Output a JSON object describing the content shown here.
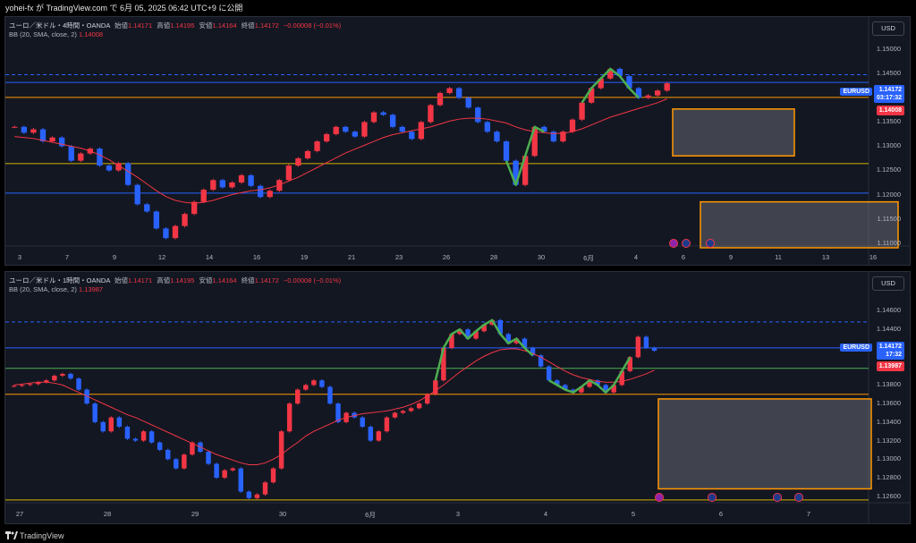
{
  "header": {
    "text": "yohei-fx が TradingView.com で 6月 05, 2025 06:42 UTC+9 に公開"
  },
  "footer": {
    "brand": "TradingView"
  },
  "colors": {
    "up": "#f23645",
    "down": "#2962ff",
    "bb": "#f23645",
    "green": "#4caf50",
    "orange": "#ff9800",
    "yellow": "#d4b300",
    "blue_line": "#2962ff"
  },
  "panels": [
    {
      "legend_title": "ユーロ／米ドル・4時間・OANDA",
      "open_label": "始値",
      "open": "1.14171",
      "high_label": "高値",
      "high": "1.14195",
      "low_label": "安値",
      "low": "1.14164",
      "close_label": "終値",
      "close": "1.14172",
      "change": "−0.00008 (−0.01%)",
      "bb_label": "BB (20, SMA, close, 2)",
      "bb_value": "1.14008",
      "currency": "USD",
      "symbol": "EURUSD",
      "last_price": "1.14172",
      "countdown": "03:17:32",
      "bb_tag": "1.14008",
      "price_ticks": [
        "1.15000",
        "1.14500",
        "1.14000",
        "1.13500",
        "1.13000",
        "1.12500",
        "1.12000",
        "1.11500",
        "1.11000"
      ],
      "date_ticks": [
        "3",
        "7",
        "9",
        "12",
        "14",
        "16",
        "19",
        "21",
        "23",
        "26",
        "28",
        "30",
        "6月",
        "4",
        "6",
        "9",
        "11",
        "13",
        "16"
      ]
    },
    {
      "legend_title": "ユーロ／米ドル・1時間・OANDA",
      "open_label": "始値",
      "open": "1.14171",
      "high_label": "高値",
      "high": "1.14195",
      "low_label": "安値",
      "low": "1.14164",
      "close_label": "終値",
      "close": "1.14172",
      "change": "−0.00008 (−0.01%)",
      "bb_label": "BB (20, SMA, close, 2)",
      "bb_value": "1.13987",
      "currency": "USD",
      "symbol": "EURUSD",
      "last_price": "1.14172",
      "countdown": "17:32",
      "bb_tag": "1.13987",
      "price_ticks": [
        "1.14600",
        "1.14400",
        "1.14200",
        "1.14000",
        "1.13800",
        "1.13600",
        "1.13400",
        "1.13200",
        "1.13000",
        "1.12800",
        "1.12600"
      ],
      "date_ticks": [
        "27",
        "28",
        "29",
        "30",
        "6月",
        "3",
        "4",
        "5",
        "6",
        "7"
      ]
    }
  ],
  "chart_data": [
    {
      "type": "candlestick",
      "title": "ユーロ／米ドル・4時間・OANDA",
      "ylim": [
        1.109,
        1.1545
      ],
      "close_series": [
        1.134,
        1.1328,
        1.1335,
        1.131,
        1.1318,
        1.13,
        1.127,
        1.1285,
        1.1295,
        1.126,
        1.125,
        1.1265,
        1.122,
        1.118,
        1.1165,
        1.113,
        1.111,
        1.1135,
        1.116,
        1.1185,
        1.121,
        1.123,
        1.1215,
        1.1225,
        1.124,
        1.1218,
        1.1195,
        1.1208,
        1.123,
        1.126,
        1.1275,
        1.129,
        1.131,
        1.1325,
        1.134,
        1.133,
        1.132,
        1.135,
        1.137,
        1.1365,
        1.134,
        1.133,
        1.1315,
        1.135,
        1.1385,
        1.141,
        1.142,
        1.14,
        1.138,
        1.135,
        1.133,
        1.131,
        1.127,
        1.122,
        1.128,
        1.134,
        1.133,
        1.131,
        1.133,
        1.1355,
        1.139,
        1.142,
        1.144,
        1.146,
        1.1445,
        1.142,
        1.14,
        1.1405,
        1.1415,
        1.143
      ],
      "bollinger_mid_series": [
        1.132,
        1.1318,
        1.1316,
        1.1312,
        1.1308,
        1.1304,
        1.13,
        1.1296,
        1.129,
        1.1282,
        1.1272,
        1.126,
        1.1248,
        1.1236,
        1.1222,
        1.1208,
        1.1196,
        1.1188,
        1.1184,
        1.1182,
        1.1184,
        1.1188,
        1.1194,
        1.12,
        1.1204,
        1.1208,
        1.121,
        1.1214,
        1.122,
        1.1228,
        1.1236,
        1.1246,
        1.1256,
        1.1266,
        1.1276,
        1.1286,
        1.1294,
        1.1302,
        1.131,
        1.1318,
        1.1324,
        1.1328,
        1.1332,
        1.1336,
        1.134,
        1.1346,
        1.1352,
        1.1356,
        1.1358,
        1.1358,
        1.1356,
        1.1352,
        1.1348,
        1.134,
        1.1334,
        1.133,
        1.1328,
        1.1326,
        1.1327,
        1.133,
        1.1336,
        1.1344,
        1.1352,
        1.136,
        1.1366,
        1.1372,
        1.1378,
        1.1384,
        1.139,
        1.1398
      ],
      "horizontal_levels": [
        {
          "y": 1.1448,
          "style": "dashed-blue"
        },
        {
          "y": 1.1432,
          "style": "blue"
        },
        {
          "y": 1.1401,
          "style": "orange"
        },
        {
          "y": 1.1264,
          "style": "yellow"
        },
        {
          "y": 1.1203,
          "style": "blue"
        }
      ],
      "zones": [
        {
          "x0": 1.0,
          "x1": 1.2,
          "y_top": 1.1377,
          "y_bottom": 1.128
        },
        {
          "x0": 1.1,
          "x1": 1.3,
          "y_top": 1.1185,
          "y_bottom": 1.109
        }
      ]
    },
    {
      "type": "candlestick",
      "title": "ユーロ／米ドル・1時間・OANDA",
      "ylim": [
        1.1253,
        1.1473
      ],
      "close_series": [
        1.1379,
        1.138,
        1.1381,
        1.1383,
        1.1385,
        1.139,
        1.1392,
        1.1387,
        1.1375,
        1.136,
        1.134,
        1.133,
        1.1345,
        1.1335,
        1.1322,
        1.132,
        1.133,
        1.1318,
        1.131,
        1.13,
        1.129,
        1.1305,
        1.1318,
        1.1308,
        1.1295,
        1.128,
        1.1288,
        1.129,
        1.1265,
        1.1258,
        1.1262,
        1.1275,
        1.129,
        1.133,
        1.136,
        1.1375,
        1.138,
        1.1385,
        1.1378,
        1.136,
        1.134,
        1.135,
        1.1345,
        1.1335,
        1.132,
        1.133,
        1.1345,
        1.135,
        1.1352,
        1.1355,
        1.136,
        1.137,
        1.1385,
        1.142,
        1.1435,
        1.144,
        1.143,
        1.1438,
        1.1445,
        1.145,
        1.1435,
        1.1425,
        1.143,
        1.142,
        1.1412,
        1.14,
        1.1385,
        1.138,
        1.1375,
        1.1372,
        1.1378,
        1.1385,
        1.138,
        1.1372,
        1.138,
        1.1395,
        1.141,
        1.1432,
        1.142,
        1.1417
      ],
      "bollinger_mid_series": [
        1.138,
        1.1381,
        1.1382,
        1.1383,
        1.1383,
        1.1382,
        1.138,
        1.1376,
        1.1372,
        1.1368,
        1.1364,
        1.136,
        1.1356,
        1.1352,
        1.1348,
        1.1345,
        1.1341,
        1.1337,
        1.1333,
        1.1329,
        1.1325,
        1.1321,
        1.1317,
        1.1313,
        1.1309,
        1.1305,
        1.1302,
        1.1299,
        1.1296,
        1.1294,
        1.1294,
        1.1296,
        1.13,
        1.1305,
        1.1312,
        1.1318,
        1.1325,
        1.133,
        1.1334,
        1.1338,
        1.1342,
        1.1345,
        1.1347,
        1.1349,
        1.135,
        1.1351,
        1.1352,
        1.1354,
        1.1356,
        1.1359,
        1.1363,
        1.1368,
        1.1374,
        1.138,
        1.1387,
        1.1394,
        1.14,
        1.1406,
        1.1411,
        1.1415,
        1.1418,
        1.1419,
        1.1419,
        1.1417,
        1.1414,
        1.141,
        1.1405,
        1.14,
        1.1395,
        1.1391,
        1.1388,
        1.1386,
        1.1384,
        1.1383,
        1.1383,
        1.1384,
        1.1386,
        1.1389,
        1.1392,
        1.1396
      ],
      "horizontal_levels": [
        {
          "y": 1.1448,
          "style": "dashed-blue"
        },
        {
          "y": 1.142,
          "style": "blue"
        },
        {
          "y": 1.1398,
          "style": "green"
        },
        {
          "y": 1.137,
          "style": "orange"
        },
        {
          "y": 1.1256,
          "style": "yellow"
        }
      ],
      "zones": [
        {
          "x0": 1.0,
          "x1": 1.3,
          "y_top": 1.1365,
          "y_bottom": 1.1268
        }
      ]
    }
  ]
}
